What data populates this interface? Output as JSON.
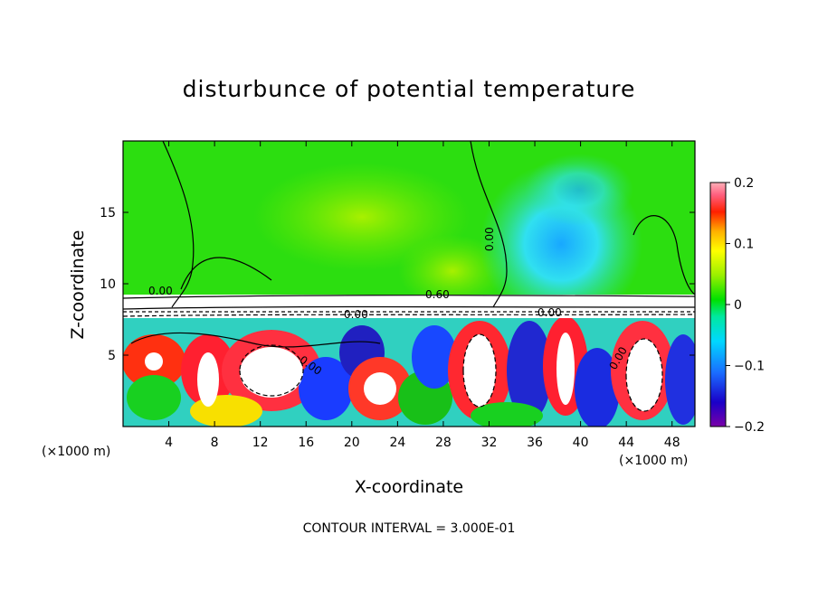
{
  "chart_data": {
    "type": "heatmap",
    "title": "disturbunce of potential temperature",
    "xlabel": "X-coordinate",
    "ylabel": "Z-coordinate",
    "x_unit_label": "(×1000 m)",
    "xlim": [
      0,
      50
    ],
    "ylim": [
      0,
      20
    ],
    "xticks": [
      4,
      8,
      12,
      16,
      20,
      24,
      28,
      32,
      36,
      40,
      44,
      48
    ],
    "yticks": [
      5,
      10,
      15
    ],
    "colorbar": {
      "range": [
        -0.2,
        0.2
      ],
      "ticks": [
        {
          "value": 0.2,
          "label": "0.2"
        },
        {
          "value": 0.1,
          "label": "0.1"
        },
        {
          "value": 0,
          "label": "0"
        },
        {
          "value": -0.1,
          "label": "−0.1"
        },
        {
          "value": -0.2,
          "label": "−0.2"
        }
      ]
    },
    "contour_labels": [
      "0.00",
      "0.00",
      "0.60",
      "0.00",
      "0.00",
      "0.00",
      "0.00"
    ],
    "footer": "CONTOUR INTERVAL = 3.000E-01"
  }
}
